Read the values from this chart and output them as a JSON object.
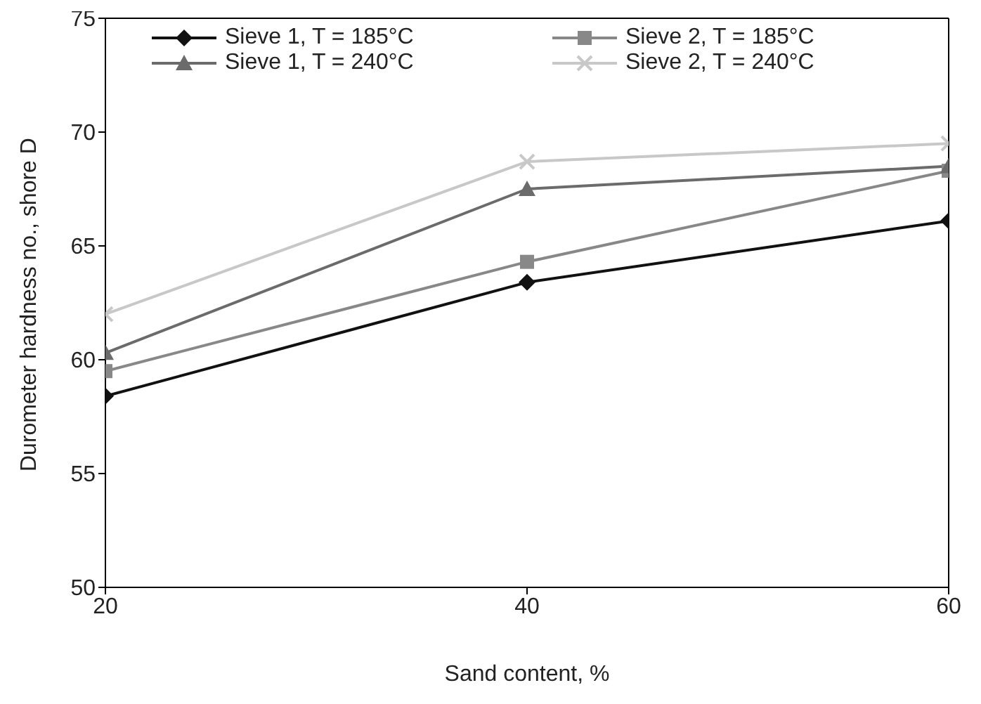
{
  "chart_data": {
    "type": "line",
    "xlabel": "Sand content, %",
    "ylabel": "Durometer hardness no., shore D",
    "x": [
      20,
      40,
      60
    ],
    "xlim": [
      20,
      60
    ],
    "xticks": [
      20,
      40,
      60
    ],
    "ylim": [
      50,
      75
    ],
    "yticks": [
      50,
      55,
      60,
      65,
      70,
      75
    ],
    "grid": false,
    "legend": "top",
    "series": [
      {
        "name": "Sieve 1, T = 185°C",
        "color": "#111111",
        "marker": "diamond",
        "values": [
          58.4,
          63.4,
          66.1
        ]
      },
      {
        "name": "Sieve 2, T = 185°C",
        "color": "#888888",
        "marker": "square",
        "values": [
          59.5,
          64.3,
          68.3
        ]
      },
      {
        "name": "Sieve 1, T = 240°C",
        "color": "#6b6b6b",
        "marker": "triangle",
        "values": [
          60.3,
          67.5,
          68.5
        ]
      },
      {
        "name": "Sieve 2, T = 240°C",
        "color": "#c8c8c8",
        "marker": "cross",
        "values": [
          62.0,
          68.7,
          69.5
        ]
      }
    ]
  }
}
